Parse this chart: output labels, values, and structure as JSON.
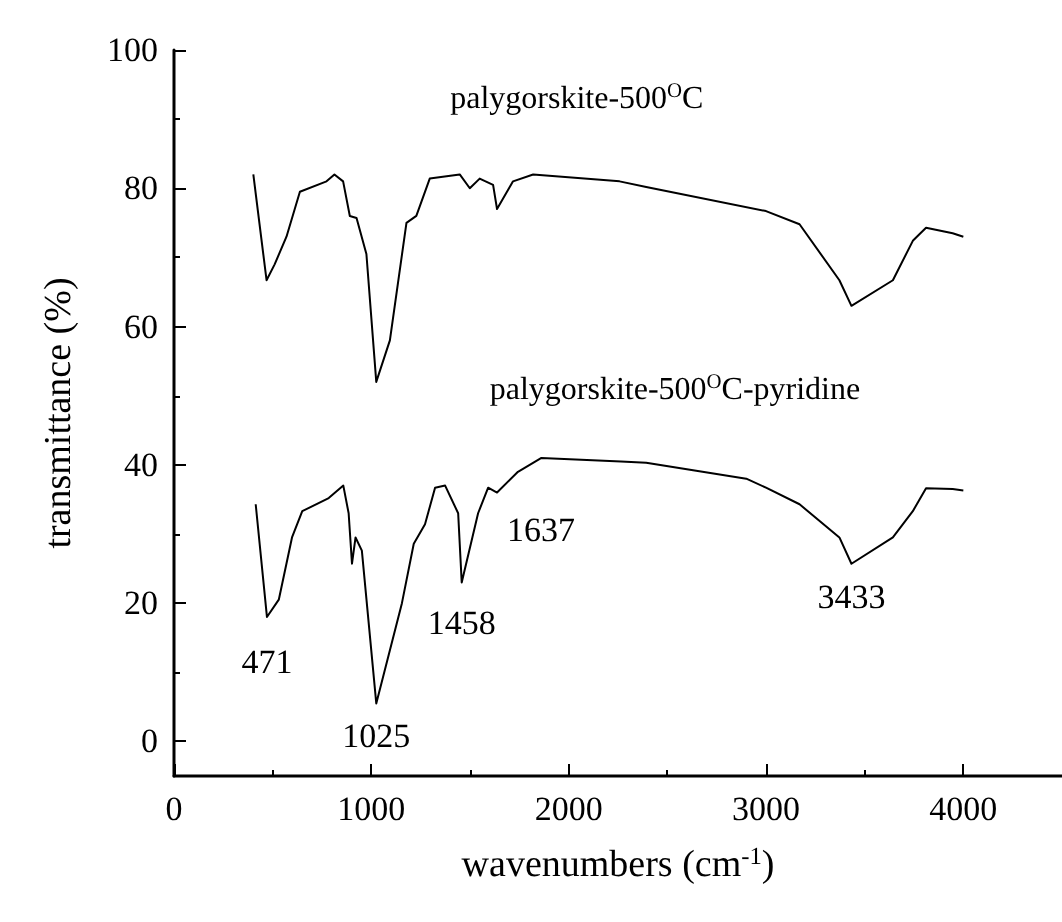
{
  "chart_data": {
    "type": "line",
    "xlabel": "wavenumbers (cm$^{-1}$)",
    "ylabel": "transmittance (%)",
    "xlim": [
      0,
      4500
    ],
    "xticks": [
      0,
      1000,
      2000,
      3000,
      4000
    ],
    "ylim": [
      -5,
      100
    ],
    "yticks": [
      0,
      20,
      40,
      60,
      80,
      100
    ],
    "grid": false,
    "marker": "none",
    "line_style": "solid",
    "series": [
      {
        "name": "palygorskite-500$^{O}$C",
        "color": "#000000",
        "x": [
          402,
          469,
          510,
          570,
          638,
          773,
          813,
          857,
          891,
          925,
          975,
          1025,
          1094,
          1178,
          1228,
          1296,
          1448,
          1499,
          1549,
          1617,
          1637,
          1718,
          1820,
          2258,
          2393,
          3000,
          3170,
          3372,
          3433,
          3643,
          3744,
          3811,
          3946,
          4000
        ],
        "values": [
          82,
          66.7,
          69,
          73,
          79.5,
          81,
          82,
          81,
          76,
          75.7,
          70.5,
          52,
          58,
          75,
          76,
          81.4,
          82,
          80,
          81.4,
          80.5,
          77,
          81,
          82,
          81,
          80.2,
          76.7,
          74.8,
          66.7,
          63,
          66.7,
          72.4,
          74.3,
          73.5,
          73
        ]
      },
      {
        "name": "palygorskite-500$^{O}$C-pyridine",
        "color": "#000000",
        "x": [
          414,
          471,
          531,
          598,
          650,
          784,
          858,
          885,
          902,
          920,
          952,
          1025,
          1155,
          1215,
          1272,
          1323,
          1374,
          1440,
          1458,
          1541,
          1592,
          1637,
          1743,
          1862,
          2265,
          2393,
          2900,
          3000,
          3170,
          3372,
          3433,
          3643,
          3744,
          3811,
          3946,
          4000
        ],
        "values": [
          34.3,
          18,
          20.5,
          29.5,
          33.3,
          35.2,
          37,
          33,
          25.7,
          29.5,
          27.6,
          5.5,
          20,
          28.6,
          31.4,
          36.7,
          37,
          33,
          23,
          33,
          36.7,
          36,
          39,
          41,
          40.5,
          40.3,
          38,
          36.7,
          34.3,
          29.5,
          25.7,
          29.5,
          33.3,
          36.6,
          36.5,
          36.3
        ]
      }
    ],
    "annotations": [
      {
        "text": "471",
        "x": 471,
        "y": 18
      },
      {
        "text": "1025",
        "x": 1025,
        "y": 5.5
      },
      {
        "text": "1458",
        "x": 1458,
        "y": 23
      },
      {
        "text": "1637",
        "x": 1637,
        "y": 36
      },
      {
        "text": "3433",
        "x": 3433,
        "y": 25.7
      }
    ]
  }
}
